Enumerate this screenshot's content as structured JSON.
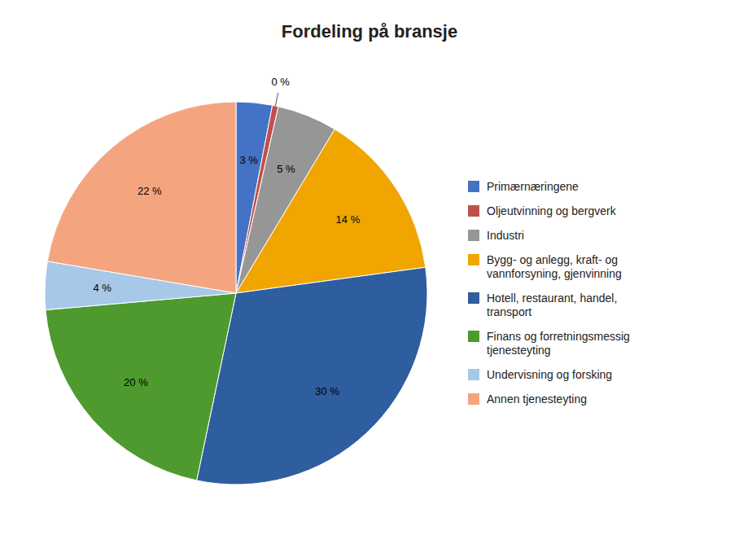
{
  "chart_data": {
    "type": "pie",
    "title": "Fordeling på bransje",
    "categories": [
      "Primærnæringene",
      "Oljeutvinning og bergverk",
      "Industri",
      "Bygg- og anlegg, kraft- og\nvannforsyning, gjenvinning",
      "Hotell, restaurant, handel,\ntransport",
      "Finans og forretningsmessig\ntjenesteyting",
      "Undervisning og forsking",
      "Annen tjenesteyting"
    ],
    "values": [
      3,
      0.5,
      5,
      14,
      30,
      20,
      4,
      22
    ],
    "value_labels": [
      "3 %",
      "0 %",
      "5 %",
      "14 %",
      "30 %",
      "20 %",
      "4 %",
      "22 %"
    ],
    "colors": [
      "#4472C4",
      "#C0504D",
      "#969696",
      "#F0A500",
      "#2E5DA0",
      "#4E9A2E",
      "#A8C8E8",
      "#F4A580"
    ],
    "data_labels": true,
    "legend": "right"
  }
}
